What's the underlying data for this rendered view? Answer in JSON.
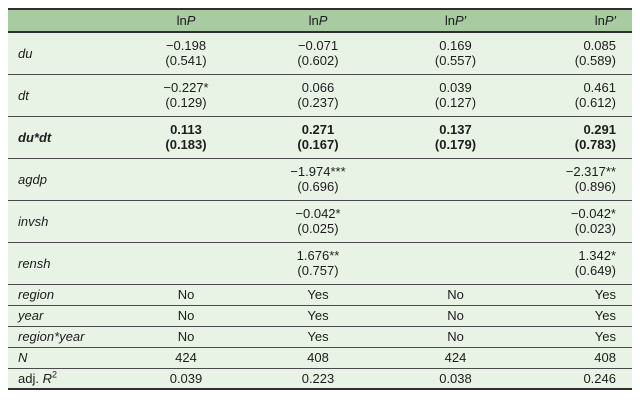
{
  "colors": {
    "header_bg": "#a8cba2",
    "row_bg": "#e9f3e5",
    "text": "#1c1c1c",
    "border_heavy": "#2f2f2f",
    "border_light": "#4a4a4a"
  },
  "table": {
    "columns": [
      {
        "upright": "",
        "italic": ""
      },
      {
        "upright": "ln",
        "italic": "P"
      },
      {
        "upright": "ln",
        "italic": "P"
      },
      {
        "upright": "ln",
        "italic": "P′"
      },
      {
        "upright": "ln",
        "italic": "P′"
      }
    ],
    "rows": [
      {
        "kind": "estimate",
        "bold": false,
        "label": {
          "italic": "du"
        },
        "cells": [
          {
            "est": "−0.198",
            "se": "(0.541)"
          },
          {
            "est": "−0.071",
            "se": "(0.602)"
          },
          {
            "est": "0.169",
            "se": "(0.557)"
          },
          {
            "est": "0.085",
            "se": "(0.589)"
          }
        ]
      },
      {
        "kind": "estimate",
        "bold": false,
        "label": {
          "italic": "dt"
        },
        "cells": [
          {
            "est": "−0.227*",
            "se": "(0.129)"
          },
          {
            "est": "0.066",
            "se": "(0.237)"
          },
          {
            "est": "0.039",
            "se": "(0.127)"
          },
          {
            "est": "0.461",
            "se": "(0.612)"
          }
        ]
      },
      {
        "kind": "estimate",
        "bold": true,
        "label": {
          "italic": "du*dt"
        },
        "cells": [
          {
            "est": "0.113",
            "se": "(0.183)"
          },
          {
            "est": "0.271",
            "se": "(0.167)"
          },
          {
            "est": "0.137",
            "se": "(0.179)"
          },
          {
            "est": "0.291",
            "se": "(0.783)"
          }
        ]
      },
      {
        "kind": "estimate",
        "bold": false,
        "label": {
          "italic": "agdp"
        },
        "cells": [
          null,
          {
            "est": "−1.974***",
            "se": "(0.696)"
          },
          null,
          {
            "est": "−2.317**",
            "se": "(0.896)"
          }
        ]
      },
      {
        "kind": "estimate",
        "bold": false,
        "label": {
          "italic": "invsh"
        },
        "cells": [
          null,
          {
            "est": "−0.042*",
            "se": "(0.025)"
          },
          null,
          {
            "est": "−0.042*",
            "se": "(0.023)"
          }
        ]
      },
      {
        "kind": "estimate",
        "bold": false,
        "label": {
          "italic": "rensh"
        },
        "cells": [
          null,
          {
            "est": "1.676**",
            "se": "(0.757)"
          },
          null,
          {
            "est": "1.342*",
            "se": "(0.649)"
          }
        ]
      },
      {
        "kind": "simple",
        "label": {
          "italic": "region"
        },
        "cells": [
          "No",
          "Yes",
          "No",
          "Yes"
        ]
      },
      {
        "kind": "simple",
        "label": {
          "italic": "year"
        },
        "cells": [
          "No",
          "Yes",
          "No",
          "Yes"
        ]
      },
      {
        "kind": "simple",
        "label": {
          "italic": "region*year"
        },
        "cells": [
          "No",
          "Yes",
          "No",
          "Yes"
        ]
      },
      {
        "kind": "simple",
        "label": {
          "italic": "N"
        },
        "cells": [
          "424",
          "408",
          "424",
          "408"
        ]
      },
      {
        "kind": "simple",
        "label": {
          "upright": "adj. ",
          "italic": "R",
          "sup": "2"
        },
        "cells": [
          "0.039",
          "0.223",
          "0.038",
          "0.246"
        ]
      }
    ]
  }
}
